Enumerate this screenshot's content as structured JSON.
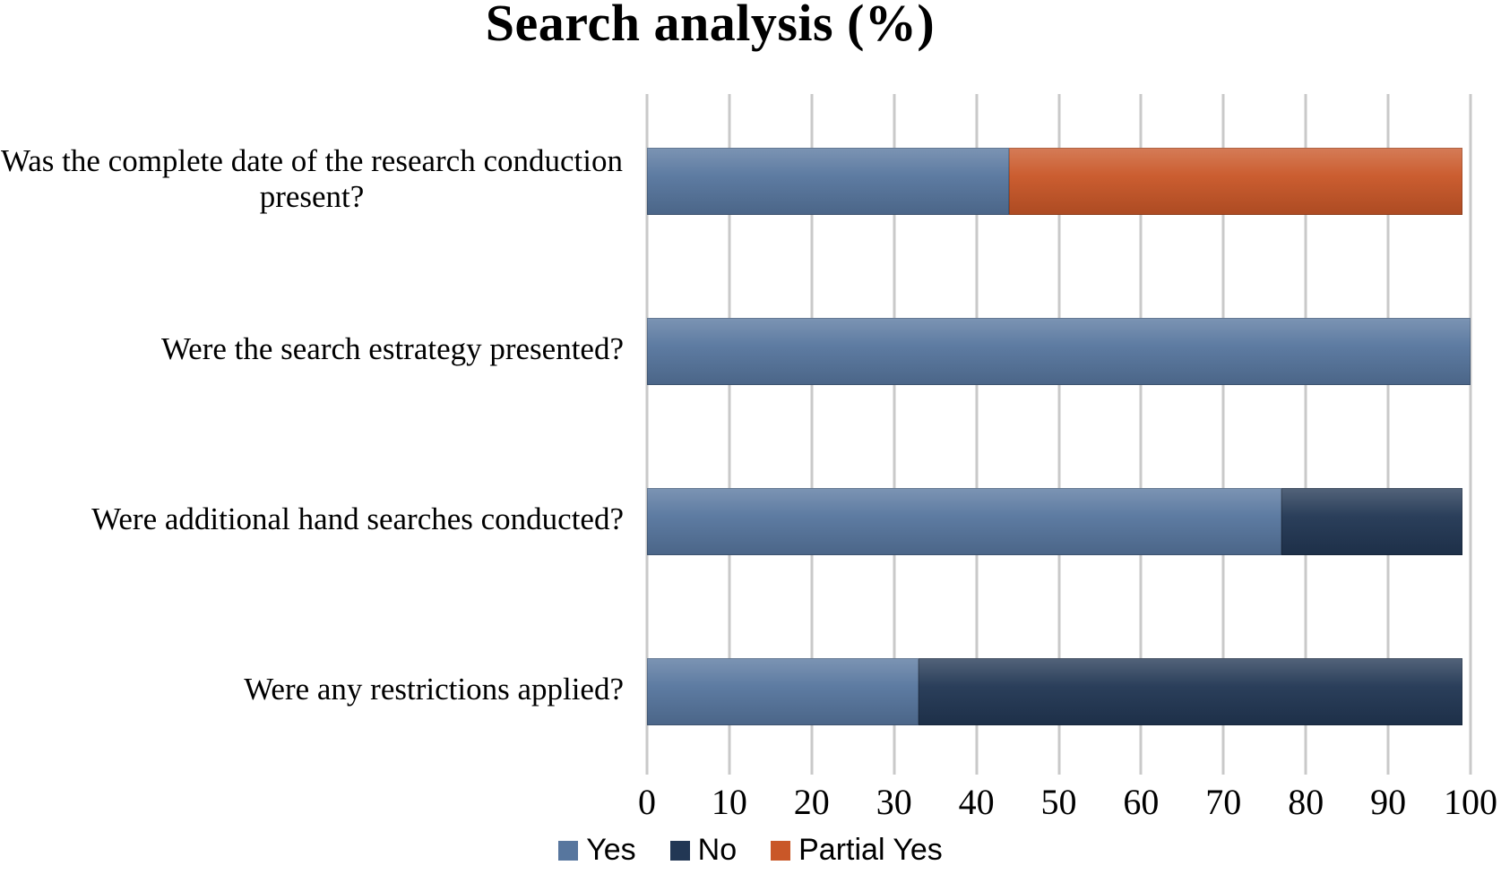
{
  "title": "Search analysis (%)",
  "chart_data": {
    "type": "bar",
    "orientation": "horizontal",
    "stacked": true,
    "title": "Search analysis (%)",
    "categories": [
      "Was the complete date of the research conduction present?",
      "Were the search estrategy presented?",
      "Were additional hand searches conducted?",
      "Were any restrictions applied?"
    ],
    "series": [
      {
        "name": "Yes",
        "color": "#57769e",
        "values": [
          44,
          100,
          77,
          33
        ]
      },
      {
        "name": "No",
        "color": "#223754",
        "values": [
          0,
          0,
          22,
          66
        ]
      },
      {
        "name": "Partial Yes",
        "color": "#c95728",
        "values": [
          55,
          0,
          0,
          0
        ]
      }
    ],
    "xlim": [
      0,
      100
    ],
    "x_ticks": [
      "0",
      "10",
      "20",
      "30",
      "40",
      "50",
      "60",
      "70",
      "80",
      "90",
      "100"
    ],
    "grid": "vertical",
    "gridline_color": "#c9c9c9",
    "legend_position": "bottom"
  }
}
